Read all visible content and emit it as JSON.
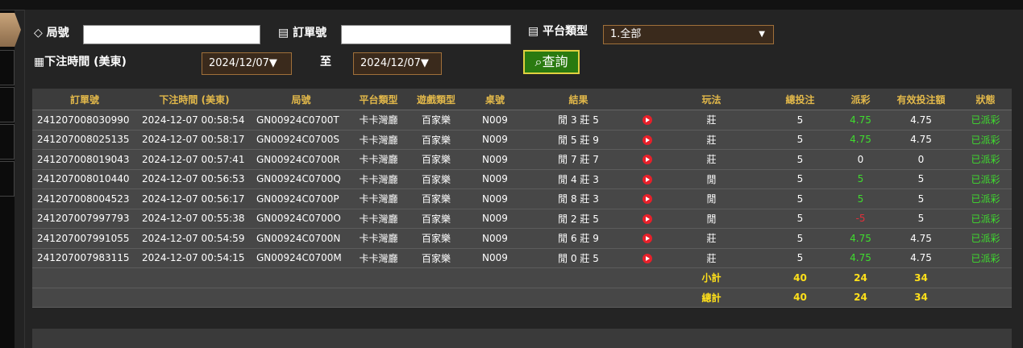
{
  "filters": {
    "round_label": "局號",
    "order_label": "訂單號",
    "platform_label": "平台類型",
    "platform_value": "1.全部",
    "time_label": "下注時間 (美東)",
    "date_from": "2024/12/07▼",
    "to_label": "至",
    "date_to": "2024/12/07▼",
    "search": "查詢"
  },
  "table": {
    "headers": [
      "訂單號",
      "下注時間 (美東)",
      "局號",
      "平台類型",
      "遊戲類型",
      "桌號",
      "結果",
      "玩法",
      "總投注",
      "派彩",
      "有效投注額",
      "狀態"
    ],
    "rows": [
      [
        "241207008030990",
        "2024-12-07 00:58:54",
        "GN00924C0700T",
        "卡卡灣廳",
        "百家樂",
        "N009",
        "閒 3 莊 5",
        "莊",
        5,
        4.75,
        4.75,
        "已派彩"
      ],
      [
        "241207008025135",
        "2024-12-07 00:58:17",
        "GN00924C0700S",
        "卡卡灣廳",
        "百家樂",
        "N009",
        "閒 5 莊 9",
        "莊",
        5,
        4.75,
        4.75,
        "已派彩"
      ],
      [
        "241207008019043",
        "2024-12-07 00:57:41",
        "GN00924C0700R",
        "卡卡灣廳",
        "百家樂",
        "N009",
        "閒 7 莊 7",
        "莊",
        5,
        0,
        0,
        "已派彩"
      ],
      [
        "241207008010440",
        "2024-12-07 00:56:53",
        "GN00924C0700Q",
        "卡卡灣廳",
        "百家樂",
        "N009",
        "閒 4 莊 3",
        "閒",
        5,
        5,
        5,
        "已派彩"
      ],
      [
        "241207008004523",
        "2024-12-07 00:56:17",
        "GN00924C0700P",
        "卡卡灣廳",
        "百家樂",
        "N009",
        "閒 8 莊 3",
        "閒",
        5,
        5,
        5,
        "已派彩"
      ],
      [
        "241207007997793",
        "2024-12-07 00:55:38",
        "GN00924C0700O",
        "卡卡灣廳",
        "百家樂",
        "N009",
        "閒 2 莊 5",
        "閒",
        5,
        -5,
        5,
        "已派彩"
      ],
      [
        "241207007991055",
        "2024-12-07 00:54:59",
        "GN00924C0700N",
        "卡卡灣廳",
        "百家樂",
        "N009",
        "閒 6 莊 9",
        "莊",
        5,
        4.75,
        4.75,
        "已派彩"
      ],
      [
        "241207007983115",
        "2024-12-07 00:54:15",
        "GN00924C0700M",
        "卡卡灣廳",
        "百家樂",
        "N009",
        "閒 0 莊 5",
        "莊",
        5,
        4.75,
        4.75,
        "已派彩"
      ]
    ],
    "summary": [
      [
        "小計",
        40,
        24,
        34
      ],
      [
        "總計",
        40,
        24,
        34
      ]
    ]
  }
}
